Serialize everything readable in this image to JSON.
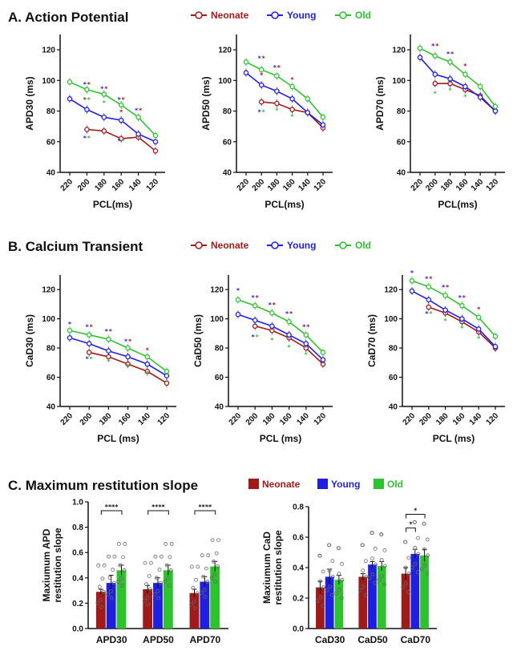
{
  "colors": {
    "Neonate": "#a11a1a",
    "Young": "#1f1fe0",
    "Old": "#2fc22f",
    "axis": "#111111"
  },
  "section_titles": [
    "A. Action  Potential",
    "B. Calcium Transient",
    "C. Maximum restitution slope"
  ],
  "chart_data": [
    {
      "id": "apd30",
      "type": "line",
      "section": "A",
      "ylabel": "APD30 (ms)",
      "xlabel": "PCL(ms)",
      "x": [
        "220",
        "200",
        "180",
        "160",
        "140",
        "120"
      ],
      "ylim": [
        40,
        130
      ],
      "yticks": [
        40,
        60,
        80,
        100,
        120
      ],
      "series": [
        {
          "name": "Neonate",
          "values": [
            null,
            68,
            67,
            62,
            63,
            54
          ]
        },
        {
          "name": "Young",
          "values": [
            88,
            81,
            76,
            74,
            65,
            60
          ]
        },
        {
          "name": "Old",
          "values": [
            99,
            94,
            91,
            84,
            76,
            64
          ]
        }
      ],
      "sig": [
        {
          "x": "200",
          "y": 96,
          "marks": [
            [
              "*",
              "Young"
            ],
            [
              "*",
              "Neonate"
            ]
          ]
        },
        {
          "x": "200",
          "y": 86,
          "marks": [
            [
              "*",
              "Neonate"
            ],
            [
              "*",
              "Old"
            ]
          ]
        },
        {
          "x": "200",
          "y": 61,
          "marks": [
            [
              "*",
              "Young"
            ],
            [
              "*",
              "Old"
            ]
          ]
        },
        {
          "x": "180",
          "y": 93,
          "marks": [
            [
              "*",
              "Young"
            ],
            [
              "*",
              "Neonate"
            ]
          ]
        },
        {
          "x": "180",
          "y": 84,
          "marks": [
            [
              "*",
              "Old"
            ]
          ]
        },
        {
          "x": "160",
          "y": 86,
          "marks": [
            [
              "*",
              "Young"
            ],
            [
              "*",
              "Neonate"
            ]
          ]
        },
        {
          "x": "160",
          "y": 78,
          "marks": [
            [
              "*",
              "Neonate"
            ]
          ]
        },
        {
          "x": "160",
          "y": 59,
          "marks": [
            [
              "*",
              "Young"
            ],
            [
              "*",
              "Old"
            ]
          ]
        },
        {
          "x": "140",
          "y": 79,
          "marks": [
            [
              "*",
              "Young"
            ],
            [
              "*",
              "Neonate"
            ]
          ]
        }
      ]
    },
    {
      "id": "apd50",
      "type": "line",
      "section": "A",
      "ylabel": "APD50 (ms)",
      "xlabel": "PCL(ms)",
      "x": [
        "220",
        "200",
        "180",
        "160",
        "140",
        "120"
      ],
      "ylim": [
        40,
        130
      ],
      "yticks": [
        40,
        60,
        80,
        100,
        120
      ],
      "series": [
        {
          "name": "Neonate",
          "values": [
            null,
            86,
            85,
            81,
            79,
            69
          ]
        },
        {
          "name": "Young",
          "values": [
            105,
            97,
            93,
            88,
            79,
            71
          ]
        },
        {
          "name": "Old",
          "values": [
            112,
            107,
            103,
            96,
            88,
            76
          ]
        }
      ],
      "sig": [
        {
          "x": "200",
          "y": 113,
          "marks": [
            [
              "*",
              "Young"
            ],
            [
              "*",
              "Neonate"
            ]
          ]
        },
        {
          "x": "200",
          "y": 102,
          "marks": [
            [
              "*",
              "Neonate"
            ]
          ]
        },
        {
          "x": "200",
          "y": 78,
          "marks": [
            [
              "*",
              "Young"
            ],
            [
              "*",
              "Old"
            ]
          ]
        },
        {
          "x": "180",
          "y": 107,
          "marks": [
            [
              "*",
              "Young"
            ],
            [
              "*",
              "Neonate"
            ]
          ]
        },
        {
          "x": "160",
          "y": 99,
          "marks": [
            [
              "*",
              "Neonate"
            ]
          ]
        },
        {
          "x": "180",
          "y": 79,
          "marks": [
            [
              "*",
              "Old"
            ]
          ]
        },
        {
          "x": "160",
          "y": 75,
          "marks": [
            [
              "*",
              "Old"
            ]
          ]
        }
      ]
    },
    {
      "id": "apd70",
      "type": "line",
      "section": "A",
      "ylabel": "APD70 (ms)",
      "xlabel": "PCL(ms)",
      "x": [
        "220",
        "200",
        "180",
        "160",
        "140",
        "120"
      ],
      "ylim": [
        40,
        130
      ],
      "yticks": [
        40,
        60,
        80,
        100,
        120
      ],
      "series": [
        {
          "name": "Neonate",
          "values": [
            null,
            98,
            98,
            94,
            90,
            80
          ]
        },
        {
          "name": "Young",
          "values": [
            115,
            104,
            101,
            96,
            89,
            80
          ]
        },
        {
          "name": "Old",
          "values": [
            121,
            116,
            112,
            104,
            96,
            83
          ]
        }
      ],
      "sig": [
        {
          "x": "200",
          "y": 121,
          "marks": [
            [
              "*",
              "Young"
            ],
            [
              "*",
              "Neonate"
            ]
          ]
        },
        {
          "x": "180",
          "y": 116,
          "marks": [
            [
              "*",
              "Young"
            ],
            [
              "*",
              "Neonate"
            ]
          ]
        },
        {
          "x": "160",
          "y": 108,
          "marks": [
            [
              "*",
              "Neonate"
            ]
          ]
        },
        {
          "x": "200",
          "y": 90,
          "marks": [
            [
              "*",
              "Old"
            ]
          ]
        },
        {
          "x": "180",
          "y": 92,
          "marks": [
            [
              "*",
              "Old"
            ]
          ]
        },
        {
          "x": "160",
          "y": 88,
          "marks": [
            [
              "*",
              "Old"
            ]
          ]
        }
      ]
    },
    {
      "id": "cad30",
      "type": "line",
      "section": "B",
      "ylabel": "CaD30 (ms)",
      "xlabel": "PCL (ms)",
      "x": [
        "220",
        "200",
        "180",
        "160",
        "140",
        "120"
      ],
      "ylim": [
        40,
        130
      ],
      "yticks": [
        40,
        60,
        80,
        100,
        120
      ],
      "series": [
        {
          "name": "Neonate",
          "values": [
            null,
            77,
            74,
            69,
            64,
            56
          ]
        },
        {
          "name": "Young",
          "values": [
            87,
            83,
            78,
            74,
            69,
            61
          ]
        },
        {
          "name": "Old",
          "values": [
            92,
            89,
            86,
            80,
            74,
            64
          ]
        }
      ],
      "sig": [
        {
          "x": "220",
          "y": 95,
          "marks": [
            [
              "*",
              "Young"
            ]
          ]
        },
        {
          "x": "200",
          "y": 93,
          "marks": [
            [
              "*",
              "Young"
            ],
            [
              "*",
              "Neonate"
            ]
          ]
        },
        {
          "x": "200",
          "y": 71,
          "marks": [
            [
              "*",
              "Young"
            ],
            [
              "*",
              "Old"
            ]
          ]
        },
        {
          "x": "180",
          "y": 90,
          "marks": [
            [
              "*",
              "Young"
            ],
            [
              "*",
              "Neonate"
            ]
          ]
        },
        {
          "x": "180",
          "y": 69,
          "marks": [
            [
              "*",
              "Old"
            ]
          ]
        },
        {
          "x": "160",
          "y": 83,
          "marks": [
            [
              "*",
              "Young"
            ],
            [
              "*",
              "Neonate"
            ]
          ]
        },
        {
          "x": "160",
          "y": 66,
          "marks": [
            [
              "*",
              "Old"
            ]
          ]
        },
        {
          "x": "140",
          "y": 77,
          "marks": [
            [
              "*",
              "Neonate"
            ]
          ]
        },
        {
          "x": "140",
          "y": 61,
          "marks": [
            [
              "*",
              "Old"
            ]
          ]
        }
      ]
    },
    {
      "id": "cad50",
      "type": "line",
      "section": "B",
      "ylabel": "CaD50 (ms)",
      "xlabel": "PCL (ms)",
      "x": [
        "220",
        "200",
        "180",
        "160",
        "140",
        "120"
      ],
      "ylim": [
        40,
        130
      ],
      "yticks": [
        40,
        60,
        80,
        100,
        120
      ],
      "series": [
        {
          "name": "Neonate",
          "values": [
            null,
            95,
            92,
            87,
            80,
            69
          ]
        },
        {
          "name": "Young",
          "values": [
            103,
            99,
            95,
            89,
            83,
            72
          ]
        },
        {
          "name": "Old",
          "values": [
            113,
            109,
            104,
            98,
            89,
            77
          ]
        }
      ],
      "sig": [
        {
          "x": "220",
          "y": 118,
          "marks": [
            [
              "*",
              "Young"
            ]
          ]
        },
        {
          "x": "200",
          "y": 113,
          "marks": [
            [
              "*",
              "Young"
            ],
            [
              "*",
              "Neonate"
            ]
          ]
        },
        {
          "x": "200",
          "y": 86,
          "marks": [
            [
              "*",
              "Young"
            ],
            [
              "*",
              "Old"
            ]
          ]
        },
        {
          "x": "180",
          "y": 108,
          "marks": [
            [
              "*",
              "Young"
            ],
            [
              "*",
              "Neonate"
            ]
          ]
        },
        {
          "x": "180",
          "y": 84,
          "marks": [
            [
              "*",
              "Old"
            ]
          ]
        },
        {
          "x": "160",
          "y": 102,
          "marks": [
            [
              "*",
              "Young"
            ],
            [
              "*",
              "Neonate"
            ]
          ]
        },
        {
          "x": "160",
          "y": 79,
          "marks": [
            [
              "*",
              "Old"
            ]
          ]
        },
        {
          "x": "140",
          "y": 93,
          "marks": [
            [
              "*",
              "Young"
            ],
            [
              "*",
              "Neonate"
            ]
          ]
        },
        {
          "x": "140",
          "y": 74,
          "marks": [
            [
              "*",
              "Old"
            ]
          ]
        }
      ]
    },
    {
      "id": "cad70",
      "type": "line",
      "section": "B",
      "ylabel": "CaD70 (ms)",
      "xlabel": "PCL (ms)",
      "x": [
        "220",
        "200",
        "180",
        "160",
        "140",
        "120"
      ],
      "ylim": [
        40,
        130
      ],
      "yticks": [
        40,
        60,
        80,
        100,
        120
      ],
      "series": [
        {
          "name": "Neonate",
          "values": [
            null,
            108,
            104,
            98,
            91,
            80
          ]
        },
        {
          "name": "Young",
          "values": [
            119,
            113,
            106,
            100,
            93,
            81
          ]
        },
        {
          "name": "Old",
          "values": [
            126,
            122,
            116,
            109,
            101,
            88
          ]
        }
      ],
      "sig": [
        {
          "x": "220",
          "y": 130,
          "marks": [
            [
              "*",
              "Young"
            ]
          ]
        },
        {
          "x": "200",
          "y": 126,
          "marks": [
            [
              "*",
              "Young"
            ],
            [
              "*",
              "Neonate"
            ]
          ]
        },
        {
          "x": "200",
          "y": 102,
          "marks": [
            [
              "*",
              "Young"
            ],
            [
              "*",
              "Old"
            ]
          ]
        },
        {
          "x": "180",
          "y": 120,
          "marks": [
            [
              "*",
              "Young"
            ],
            [
              "*",
              "Neonate"
            ]
          ]
        },
        {
          "x": "180",
          "y": 97,
          "marks": [
            [
              "*",
              "Old"
            ]
          ]
        },
        {
          "x": "160",
          "y": 113,
          "marks": [
            [
              "*",
              "Young"
            ],
            [
              "*",
              "Neonate"
            ]
          ]
        },
        {
          "x": "160",
          "y": 92,
          "marks": [
            [
              "*",
              "Old"
            ]
          ]
        },
        {
          "x": "140",
          "y": 105,
          "marks": [
            [
              "*",
              "Neonate"
            ]
          ]
        },
        {
          "x": "140",
          "y": 85,
          "marks": [
            [
              "*",
              "Old"
            ]
          ]
        }
      ]
    },
    {
      "id": "apd_slope",
      "type": "bar",
      "section": "C",
      "ylabel": [
        "Maxiumum APD",
        "restitution slope"
      ],
      "xlabel": "",
      "categories": [
        "APD30",
        "APD50",
        "APD70"
      ],
      "ylim": [
        0,
        1.0
      ],
      "yticks": [
        0.0,
        0.2,
        0.4,
        0.6,
        0.8,
        1.0
      ],
      "series": [
        {
          "name": "Neonate",
          "values": [
            0.29,
            0.31,
            0.28
          ],
          "errors": [
            0.02,
            0.03,
            0.03
          ]
        },
        {
          "name": "Young",
          "values": [
            0.36,
            0.36,
            0.37
          ],
          "errors": [
            0.06,
            0.04,
            0.04
          ]
        },
        {
          "name": "Old",
          "values": [
            0.46,
            0.46,
            0.49
          ],
          "errors": [
            0.04,
            0.04,
            0.04
          ]
        }
      ],
      "brackets": [
        {
          "category": "APD30",
          "from": "Neonate",
          "to": "Old",
          "y": 0.93,
          "label": "****"
        },
        {
          "category": "APD50",
          "from": "Neonate",
          "to": "Old",
          "y": 0.93,
          "label": "****"
        },
        {
          "category": "APD70",
          "from": "Neonate",
          "to": "Old",
          "y": 0.93,
          "label": "****"
        }
      ]
    },
    {
      "id": "cad_slope",
      "type": "bar",
      "section": "C",
      "ylabel": [
        "Maxiumum CaD",
        "restitution slope"
      ],
      "xlabel": "",
      "categories": [
        "CaD30",
        "CaD50",
        "CaD70"
      ],
      "ylim": [
        0,
        0.8
      ],
      "yticks": [
        0.0,
        0.2,
        0.4,
        0.6,
        0.8
      ],
      "series": [
        {
          "name": "Neonate",
          "values": [
            0.27,
            0.34,
            0.36
          ],
          "errors": [
            0.04,
            0.02,
            0.04
          ]
        },
        {
          "name": "Young",
          "values": [
            0.34,
            0.42,
            0.49
          ],
          "errors": [
            0.05,
            0.02,
            0.03
          ]
        },
        {
          "name": "Old",
          "values": [
            0.32,
            0.41,
            0.48
          ],
          "errors": [
            0.03,
            0.03,
            0.04
          ]
        }
      ],
      "brackets": [
        {
          "category": "CaD70",
          "from": "Neonate",
          "to": "Young",
          "y": 0.66,
          "label": "*"
        },
        {
          "category": "CaD70",
          "from": "Neonate",
          "to": "Old",
          "y": 0.75,
          "label": "*"
        }
      ]
    }
  ]
}
